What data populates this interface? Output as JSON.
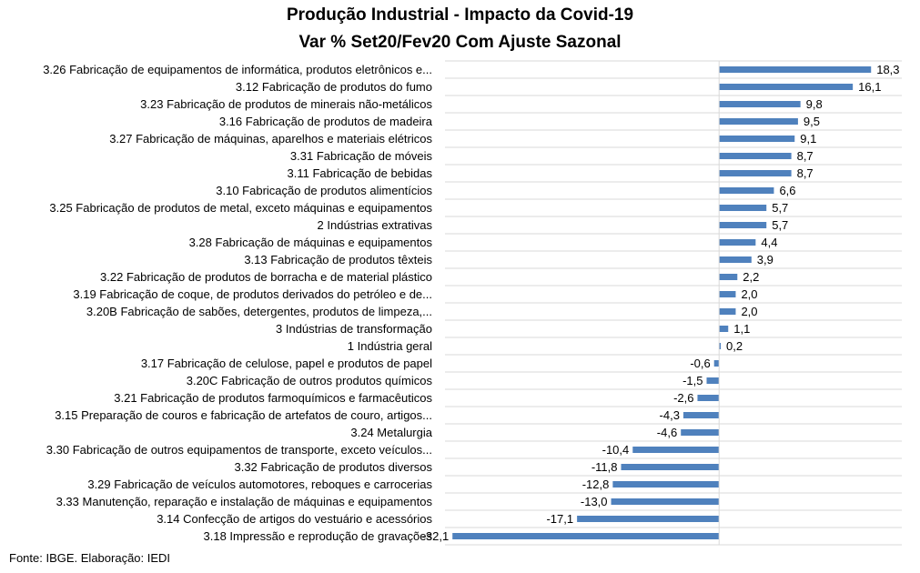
{
  "chart_data": {
    "type": "bar",
    "orientation": "horizontal",
    "title": "Produção Industrial - Impacto da Covid-19",
    "subtitle": "Var % Set20/Fev20 Com Ajuste Sazonal",
    "xlim": [
      -33,
      22
    ],
    "grid": "horizontal gridlines",
    "data_labels": true,
    "bar_color": "#4F81BD",
    "categories": [
      "3.26 Fabricação de equipamentos de informática, produtos eletrônicos e...",
      "3.12 Fabricação de produtos do fumo",
      "3.23 Fabricação de produtos de minerais não-metálicos",
      "3.16 Fabricação de produtos de madeira",
      "3.27 Fabricação de máquinas, aparelhos e materiais elétricos",
      "3.31 Fabricação de móveis",
      "3.11 Fabricação de bebidas",
      "3.10 Fabricação de produtos alimentícios",
      "3.25 Fabricação de produtos de metal, exceto máquinas e equipamentos",
      "2 Indústrias extrativas",
      "3.28 Fabricação de máquinas e equipamentos",
      "3.13 Fabricação de produtos têxteis",
      "3.22 Fabricação de produtos de borracha e de material plástico",
      "3.19 Fabricação de coque, de produtos derivados do petróleo e de...",
      "3.20B Fabricação de sabões, detergentes, produtos de limpeza,...",
      "3 Indústrias de transformação",
      "1 Indústria geral",
      "3.17 Fabricação de celulose, papel e produtos de papel",
      "3.20C Fabricação de outros produtos químicos",
      "3.21 Fabricação de produtos farmoquímicos e farmacêuticos",
      "3.15 Preparação de couros e fabricação de artefatos de couro, artigos...",
      "3.24 Metalurgia",
      "3.30 Fabricação de outros equipamentos de transporte, exceto veículos...",
      "3.32 Fabricação de produtos diversos",
      "3.29 Fabricação de veículos automotores, reboques e carrocerias",
      "3.33 Manutenção, reparação e instalação de máquinas e equipamentos",
      "3.14 Confecção de artigos do vestuário e acessórios",
      "3.18 Impressão e reprodução de gravações"
    ],
    "values": [
      18.3,
      16.1,
      9.8,
      9.5,
      9.1,
      8.7,
      8.7,
      6.6,
      5.7,
      5.7,
      4.4,
      3.9,
      2.2,
      2.0,
      2.0,
      1.1,
      0.2,
      -0.6,
      -1.5,
      -2.6,
      -4.3,
      -4.6,
      -10.4,
      -11.8,
      -12.8,
      -13.0,
      -17.1,
      -32.1
    ],
    "value_labels": [
      "18,3",
      "16,1",
      "9,8",
      "9,5",
      "9,1",
      "8,7",
      "8,7",
      "6,6",
      "5,7",
      "5,7",
      "4,4",
      "3,9",
      "2,2",
      "2,0",
      "2,0",
      "1,1",
      "0,2",
      "-0,6",
      "-1,5",
      "-2,6",
      "-4,3",
      "-4,6",
      "-10,4",
      "-11,8",
      "-12,8",
      "-13,0",
      "-17,1",
      "-32,1"
    ]
  },
  "footer": {
    "source": "Fonte: IBGE. Elaboração: IEDI"
  }
}
